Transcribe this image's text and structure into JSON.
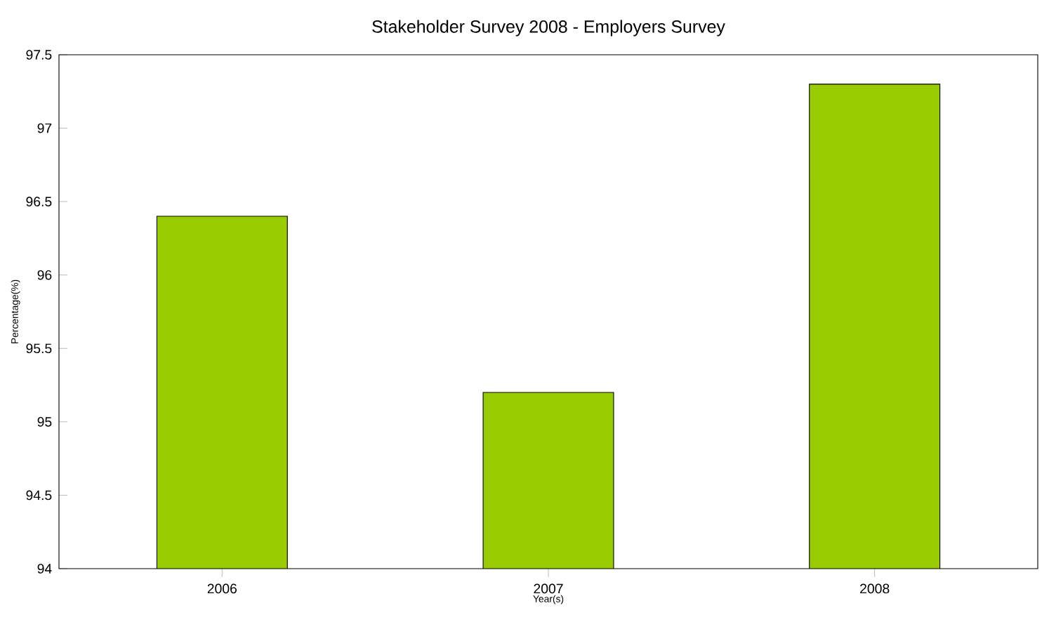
{
  "chart_data": {
    "type": "bar",
    "title": "Stakeholder Survey 2008 - Employers Survey",
    "xlabel": "Year(s)",
    "ylabel": "Percentage(%)",
    "categories": [
      "2006",
      "2007",
      "2008"
    ],
    "values": [
      96.4,
      95.2,
      97.3
    ],
    "color": "#99cc00",
    "ylim": [
      94,
      97.5
    ],
    "yticks": [
      94,
      94.5,
      95,
      95.5,
      96,
      96.5,
      97,
      97.5
    ],
    "grid": false
  }
}
